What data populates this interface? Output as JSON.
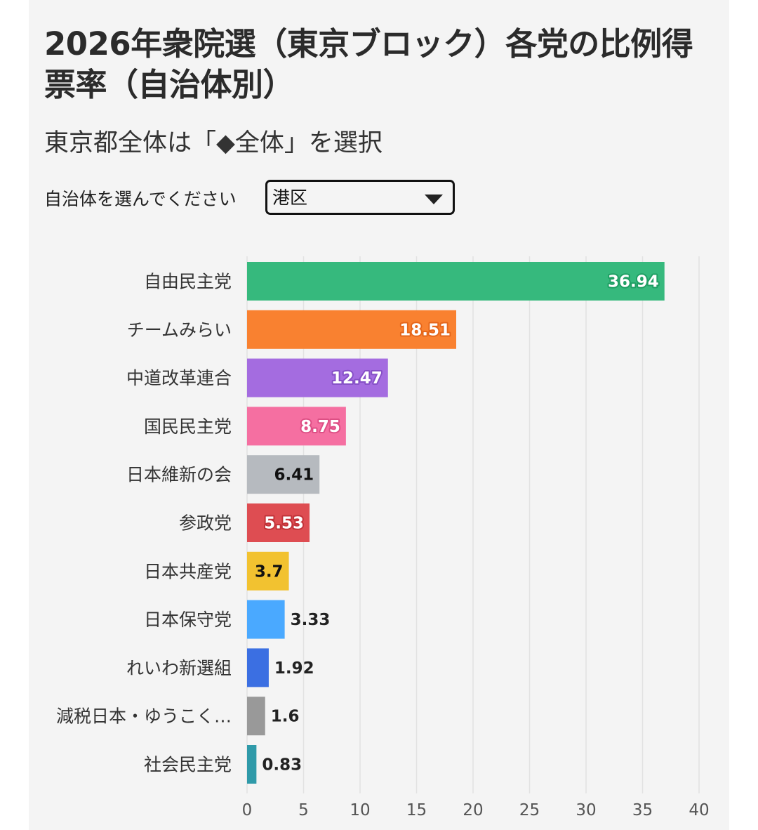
{
  "header": {
    "title": "2026年衆院選（東京ブロック）各党の比例得票率（自治体別）",
    "subtitle": "東京都全体は「◆全体」を選択"
  },
  "selector": {
    "label": "自治体を選んでください",
    "selected": "港区"
  },
  "chart_data": {
    "type": "bar",
    "orientation": "horizontal",
    "categories": [
      "自由民主党",
      "チームみらい",
      "中道改革連合",
      "国民民主党",
      "日本維新の会",
      "参政党",
      "日本共産党",
      "日本保守党",
      "れいわ新選組",
      "減税日本・ゆうこく…",
      "社会民主党"
    ],
    "values": [
      36.94,
      18.51,
      12.47,
      8.75,
      6.41,
      5.53,
      3.7,
      3.33,
      1.92,
      1.6,
      0.83
    ],
    "value_labels": [
      "36.94",
      "18.51",
      "12.47",
      "8.75",
      "6.41",
      "5.53",
      "3.7",
      "3.33",
      "1.92",
      "1.6",
      "0.83"
    ],
    "colors": [
      "#36b97d",
      "#f98130",
      "#a46ce0",
      "#f56fa1",
      "#b6babf",
      "#de4d52",
      "#f2c230",
      "#4aa9ff",
      "#3b6fe2",
      "#999999",
      "#2f9aa9"
    ],
    "label_inside": [
      true,
      true,
      true,
      true,
      true,
      true,
      true,
      false,
      false,
      false,
      false
    ],
    "label_colors": [
      "#ffffff",
      "#ffffff",
      "#ffffff",
      "#ffffff",
      "#111111",
      "#ffffff",
      "#111111",
      "#222222",
      "#222222",
      "#222222",
      "#222222"
    ],
    "label_halo": [
      "#1f9e63",
      "#e5661a",
      "#8650c7",
      "#de4f85",
      "",
      "#c23238",
      "",
      "",
      "",
      "",
      ""
    ],
    "xlim": [
      0,
      40
    ],
    "xticks": [
      "0",
      "5",
      "10",
      "15",
      "20",
      "25",
      "30",
      "35",
      "40"
    ],
    "xlabel": "",
    "ylabel": "",
    "grid": true,
    "legend": "none"
  }
}
